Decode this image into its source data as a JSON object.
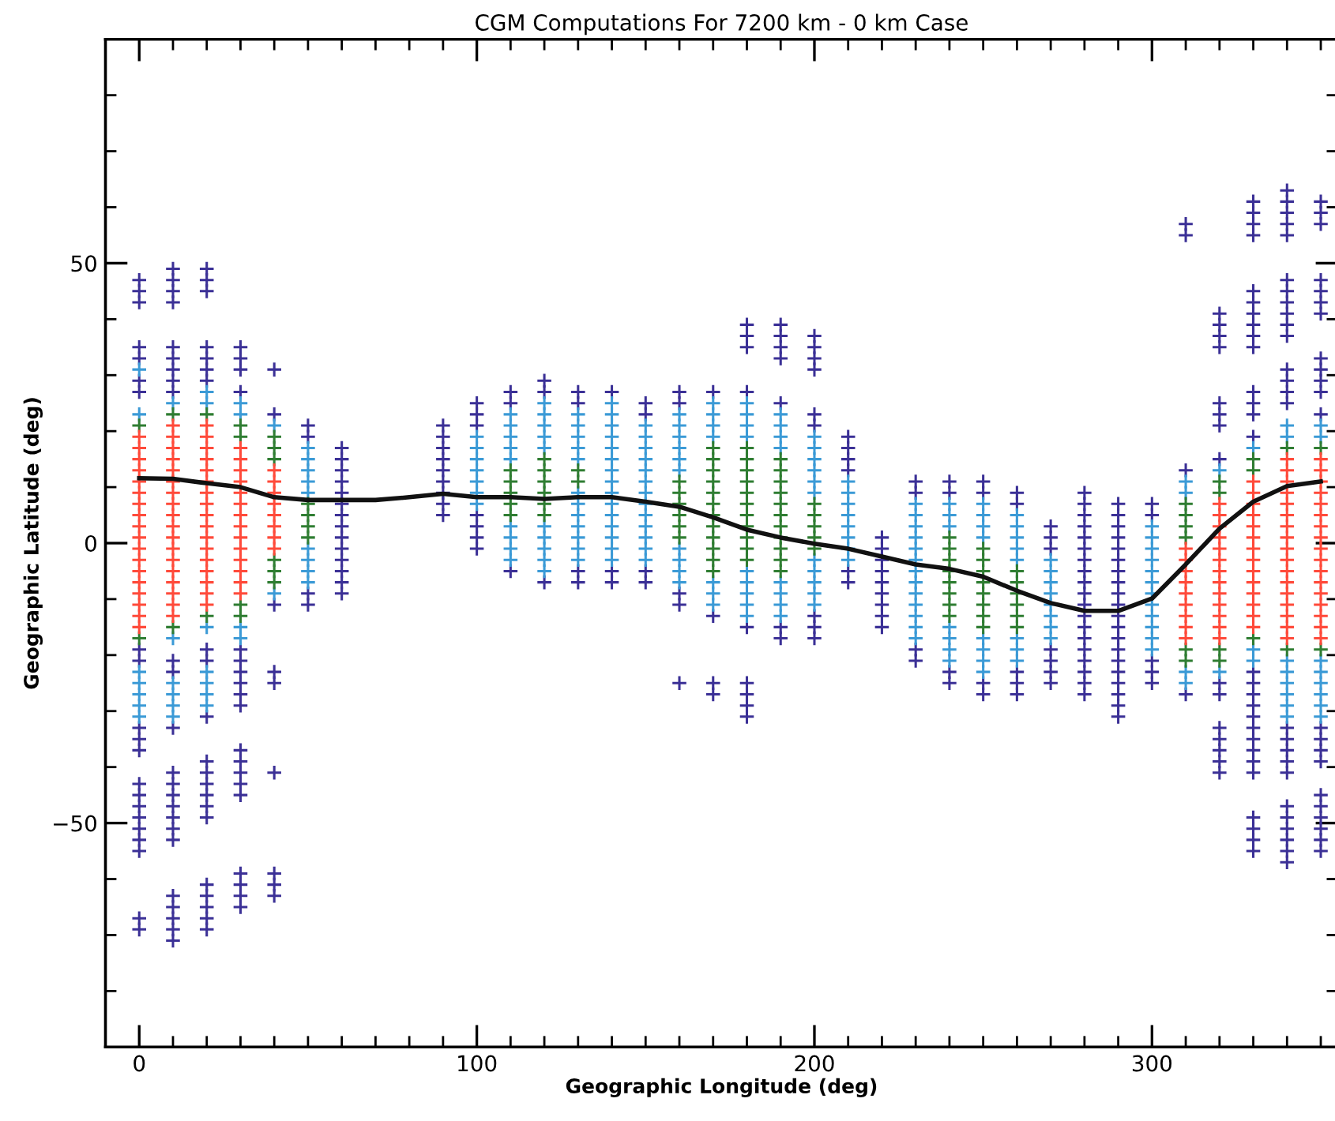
{
  "chart_data": {
    "type": "scatter",
    "title": "CGM Computations For 7200 km - 0 km Case",
    "xlabel": "Geographic Longitude (deg)",
    "ylabel": "Geographic Latitude (deg)",
    "xlim": [
      -10,
      355
    ],
    "ylim": [
      -90,
      90
    ],
    "xticks": [
      0,
      {
        "value": 10,
        "label": null
      },
      {
        "value": 20,
        "label": null
      },
      {
        "value": 30,
        "label": null
      },
      {
        "value": 40,
        "label": null
      },
      {
        "value": 50,
        "label": null
      },
      {
        "value": 60,
        "label": null
      },
      {
        "value": 70,
        "label": null
      },
      {
        "value": 80,
        "label": null
      },
      {
        "value": 90,
        "label": null
      },
      100,
      {
        "value": 110,
        "label": null
      },
      {
        "value": 120,
        "label": null
      },
      {
        "value": 130,
        "label": null
      },
      {
        "value": 140,
        "label": null
      },
      {
        "value": 150,
        "label": null
      },
      {
        "value": 160,
        "label": null
      },
      {
        "value": 170,
        "label": null
      },
      {
        "value": 180,
        "label": null
      },
      {
        "value": 190,
        "label": null
      },
      200,
      {
        "value": 210,
        "label": null
      },
      {
        "value": 220,
        "label": null
      },
      {
        "value": 230,
        "label": null
      },
      {
        "value": 240,
        "label": null
      },
      {
        "value": 250,
        "label": null
      },
      {
        "value": 260,
        "label": null
      },
      {
        "value": 270,
        "label": null
      },
      {
        "value": 280,
        "label": null
      },
      {
        "value": 290,
        "label": null
      },
      300,
      {
        "value": 310,
        "label": null
      },
      {
        "value": 320,
        "label": null
      },
      {
        "value": 330,
        "label": null
      },
      {
        "value": 340,
        "label": null
      },
      {
        "value": 350,
        "label": null
      }
    ],
    "yticks": [
      {
        "value": -80,
        "label": null
      },
      {
        "value": -70,
        "label": null
      },
      {
        "value": -60,
        "label": null
      },
      {
        "value": -50,
        "label": "−50"
      },
      {
        "value": -40,
        "label": null
      },
      {
        "value": -30,
        "label": null
      },
      {
        "value": -20,
        "label": null
      },
      {
        "value": -10,
        "label": null
      },
      0,
      {
        "value": 10,
        "label": null
      },
      {
        "value": 20,
        "label": null
      },
      {
        "value": 30,
        "label": null
      },
      {
        "value": 40,
        "label": null
      },
      50,
      {
        "value": 60,
        "label": null
      },
      {
        "value": 70,
        "label": null
      },
      {
        "value": 80,
        "label": null
      }
    ],
    "marker": "cross",
    "series": [
      {
        "color": "#3b3096",
        "x": [
          0,
          0,
          0,
          0,
          0,
          0,
          0,
          0,
          0,
          0,
          0,
          0,
          0,
          0,
          0,
          0,
          0,
          0,
          0,
          0,
          0,
          10,
          10,
          10,
          10,
          10,
          10,
          10,
          10,
          10,
          10,
          10,
          10,
          10,
          10,
          10,
          10,
          10,
          10,
          10,
          10,
          10,
          10,
          10,
          10,
          20,
          20,
          20,
          20,
          20,
          20,
          20,
          20,
          20,
          20,
          20,
          20,
          20,
          20,
          20,
          20,
          20,
          20,
          20,
          20,
          20,
          30,
          30,
          30,
          30,
          30,
          30,
          30,
          30,
          30,
          30,
          30,
          30,
          30,
          30,
          30,
          30,
          30,
          30,
          30,
          40,
          40,
          40,
          40,
          40,
          40,
          40,
          40,
          40,
          50,
          50,
          50,
          50,
          60,
          60,
          60,
          60,
          60,
          60,
          60,
          60,
          60,
          60,
          60,
          60,
          60,
          60,
          90,
          90,
          90,
          90,
          90,
          90,
          90,
          90,
          90,
          100,
          100,
          100,
          100,
          100,
          100,
          100,
          110,
          110,
          110,
          120,
          120,
          120,
          130,
          130,
          130,
          130,
          140,
          140,
          140,
          150,
          150,
          150,
          150,
          160,
          160,
          160,
          160,
          160,
          170,
          170,
          170,
          170,
          180,
          180,
          180,
          180,
          180,
          180,
          180,
          180,
          180,
          190,
          190,
          190,
          190,
          190,
          190,
          190,
          200,
          200,
          200,
          200,
          200,
          200,
          200,
          200,
          200,
          210,
          210,
          210,
          210,
          210,
          210,
          220,
          220,
          220,
          220,
          220,
          220,
          220,
          220,
          220,
          230,
          230,
          230,
          230,
          240,
          240,
          240,
          240,
          250,
          250,
          250,
          250,
          260,
          260,
          260,
          260,
          260,
          270,
          270,
          270,
          270,
          270,
          270,
          270,
          280,
          280,
          280,
          280,
          280,
          280,
          280,
          280,
          280,
          280,
          280,
          280,
          280,
          280,
          280,
          280,
          280,
          280,
          280,
          290,
          290,
          290,
          290,
          290,
          290,
          290,
          290,
          290,
          290,
          290,
          290,
          290,
          290,
          290,
          290,
          290,
          290,
          290,
          290,
          300,
          300,
          300,
          300,
          300,
          310,
          310,
          310,
          310,
          320,
          320,
          320,
          320,
          320,
          320,
          320,
          320,
          320,
          320,
          320,
          320,
          320,
          320,
          320,
          330,
          330,
          330,
          330,
          330,
          330,
          330,
          330,
          330,
          330,
          330,
          330,
          330,
          330,
          330,
          330,
          330,
          330,
          330,
          330,
          330,
          330,
          330,
          330,
          330,
          330,
          330,
          330,
          340,
          340,
          340,
          340,
          340,
          340,
          340,
          340,
          340,
          340,
          340,
          340,
          340,
          340,
          340,
          340,
          340,
          340,
          340,
          340,
          340,
          340,
          340,
          340,
          340,
          340,
          350,
          350,
          350,
          350,
          350,
          350,
          350,
          350,
          350,
          350,
          350,
          350,
          350,
          350,
          350,
          350,
          350,
          350,
          350,
          350,
          350,
          350
        ],
        "values": [
          47,
          45,
          43,
          35,
          33,
          29,
          27,
          -19,
          -21,
          -33,
          -35,
          -37,
          -43,
          -45,
          -47,
          -49,
          -51,
          -53,
          -55,
          -67,
          -69,
          49,
          47,
          45,
          43,
          35,
          33,
          31,
          29,
          27,
          -21,
          -23,
          -33,
          -41,
          -43,
          -45,
          -47,
          -49,
          -51,
          -53,
          -63,
          -65,
          -67,
          -69,
          -71,
          49,
          47,
          45,
          35,
          33,
          31,
          29,
          -19,
          -21,
          -31,
          -39,
          -41,
          -43,
          -45,
          -47,
          -49,
          -61,
          -63,
          -65,
          -67,
          -69,
          35,
          33,
          31,
          27,
          -19,
          -21,
          -23,
          -25,
          -27,
          -29,
          -37,
          -39,
          -41,
          -43,
          -45,
          -59,
          -61,
          -63,
          -65,
          31,
          23,
          -11,
          -23,
          -25,
          -41,
          -59,
          -61,
          -63,
          21,
          19,
          -9,
          -11,
          17,
          15,
          13,
          11,
          9,
          7,
          5,
          3,
          1,
          -1,
          -3,
          -5,
          -7,
          -9,
          21,
          19,
          17,
          15,
          13,
          11,
          9,
          7,
          5,
          25,
          23,
          21,
          5,
          3,
          1,
          -1,
          27,
          25,
          -5,
          29,
          27,
          -7,
          27,
          25,
          -5,
          -7,
          27,
          -5,
          -7,
          25,
          23,
          -5,
          -7,
          27,
          25,
          -9,
          -11,
          -25,
          27,
          -13,
          -25,
          -27,
          39,
          37,
          35,
          27,
          -15,
          -25,
          -27,
          -29,
          -31,
          39,
          37,
          35,
          33,
          25,
          -15,
          -17,
          37,
          35,
          33,
          31,
          23,
          21,
          -13,
          -15,
          -17,
          19,
          17,
          15,
          13,
          -5,
          -7,
          1,
          -1,
          -3,
          -5,
          -7,
          -9,
          -11,
          -13,
          -15,
          11,
          9,
          -19,
          -21,
          11,
          9,
          -23,
          -25,
          11,
          9,
          -25,
          -27,
          9,
          7,
          -23,
          -25,
          -27,
          3,
          1,
          -1,
          -19,
          -21,
          -23,
          -25,
          9,
          7,
          5,
          3,
          1,
          -1,
          -3,
          -5,
          -7,
          -9,
          -11,
          -13,
          -15,
          -17,
          -19,
          -21,
          -23,
          -25,
          -27,
          7,
          5,
          3,
          1,
          -1,
          -3,
          -5,
          -7,
          -9,
          -11,
          -13,
          -15,
          -17,
          -19,
          -21,
          -23,
          -25,
          -27,
          -29,
          -31,
          7,
          5,
          -21,
          -23,
          -25,
          57,
          55,
          13,
          -27,
          41,
          39,
          37,
          35,
          25,
          23,
          21,
          15,
          -25,
          -27,
          -33,
          -35,
          -37,
          -39,
          -41,
          61,
          59,
          57,
          55,
          45,
          43,
          41,
          39,
          37,
          35,
          27,
          25,
          23,
          19,
          -23,
          -25,
          -27,
          -29,
          -31,
          -33,
          -35,
          -37,
          -39,
          -41,
          -49,
          -51,
          -53,
          -55,
          63,
          61,
          59,
          57,
          55,
          47,
          45,
          43,
          41,
          39,
          37,
          31,
          29,
          27,
          25,
          -33,
          -35,
          -37,
          -39,
          -41,
          -47,
          -49,
          -51,
          -53,
          -55,
          -57,
          61,
          59,
          57,
          47,
          45,
          43,
          41,
          33,
          31,
          29,
          27,
          23,
          -33,
          -35,
          -37,
          -39,
          -45,
          -47,
          -49,
          -51,
          -53,
          -55
        ]
      },
      {
        "color": "#3b9ad6",
        "x": [
          0,
          0,
          0,
          0,
          0,
          0,
          0,
          10,
          10,
          10,
          10,
          10,
          10,
          20,
          20,
          20,
          20,
          20,
          20,
          20,
          30,
          30,
          30,
          30,
          40,
          40,
          50,
          50,
          50,
          50,
          50,
          50,
          50,
          50,
          50,
          100,
          100,
          100,
          100,
          100,
          100,
          100,
          110,
          110,
          110,
          110,
          110,
          110,
          110,
          110,
          110,
          120,
          120,
          120,
          120,
          120,
          120,
          120,
          120,
          120,
          120,
          130,
          130,
          130,
          130,
          130,
          130,
          130,
          130,
          130,
          130,
          130,
          130,
          140,
          140,
          140,
          140,
          140,
          140,
          140,
          140,
          140,
          140,
          140,
          140,
          140,
          140,
          140,
          150,
          150,
          150,
          150,
          150,
          150,
          150,
          150,
          150,
          150,
          150,
          150,
          150,
          160,
          160,
          160,
          160,
          160,
          160,
          160,
          160,
          160,
          160,
          170,
          170,
          170,
          170,
          170,
          170,
          170,
          180,
          180,
          180,
          180,
          180,
          180,
          180,
          180,
          180,
          190,
          190,
          190,
          190,
          190,
          190,
          190,
          190,
          200,
          200,
          200,
          200,
          200,
          200,
          200,
          200,
          200,
          200,
          200,
          210,
          210,
          210,
          210,
          210,
          210,
          210,
          210,
          230,
          230,
          230,
          230,
          230,
          230,
          230,
          230,
          230,
          230,
          230,
          230,
          230,
          240,
          240,
          240,
          240,
          240,
          240,
          240,
          250,
          250,
          250,
          250,
          250,
          250,
          250,
          250,
          260,
          260,
          260,
          260,
          260,
          260,
          260,
          260,
          270,
          270,
          270,
          270,
          270,
          270,
          270,
          270,
          300,
          300,
          300,
          300,
          300,
          300,
          300,
          300,
          300,
          300,
          300,
          300,
          310,
          310,
          310,
          310,
          320,
          320,
          330,
          330,
          330,
          340,
          340,
          340,
          340,
          340,
          340,
          340,
          340,
          350,
          350,
          350,
          350,
          350,
          350,
          350,
          350
        ],
        "values": [
          31,
          23,
          -23,
          -25,
          -27,
          -29,
          -31,
          25,
          -17,
          -25,
          -27,
          -29,
          -31,
          27,
          25,
          -15,
          -23,
          -25,
          -27,
          -29,
          25,
          23,
          -15,
          -17,
          21,
          -9,
          17,
          15,
          13,
          11,
          9,
          -1,
          -3,
          -5,
          -7,
          19,
          17,
          15,
          13,
          11,
          9,
          7,
          23,
          21,
          19,
          17,
          15,
          3,
          1,
          -1,
          -3,
          25,
          23,
          21,
          19,
          17,
          3,
          1,
          -1,
          -3,
          -5,
          23,
          21,
          19,
          17,
          15,
          9,
          7,
          5,
          3,
          1,
          -1,
          -3,
          25,
          23,
          21,
          19,
          17,
          15,
          13,
          11,
          9,
          7,
          5,
          3,
          1,
          -1,
          -3,
          21,
          19,
          17,
          15,
          13,
          11,
          9,
          7,
          5,
          3,
          1,
          -1,
          -3,
          23,
          21,
          19,
          17,
          15,
          13,
          -1,
          -3,
          -5,
          -7,
          25,
          23,
          21,
          19,
          -7,
          -9,
          -11,
          25,
          23,
          21,
          19,
          -5,
          -7,
          -9,
          -11,
          -13,
          23,
          21,
          19,
          17,
          -7,
          -9,
          -11,
          -13,
          19,
          17,
          15,
          13,
          11,
          9,
          -3,
          -5,
          -7,
          -9,
          -11,
          11,
          9,
          7,
          5,
          3,
          1,
          -1,
          -3,
          7,
          5,
          3,
          1,
          -1,
          -3,
          -5,
          -7,
          -9,
          -11,
          -13,
          -15,
          -17,
          7,
          5,
          3,
          -15,
          -17,
          -19,
          -21,
          7,
          5,
          3,
          1,
          -17,
          -19,
          -21,
          -23,
          5,
          3,
          1,
          -1,
          -3,
          -17,
          -19,
          -21,
          -3,
          -5,
          -7,
          -9,
          -11,
          -13,
          -15,
          -17,
          3,
          1,
          -1,
          -3,
          -5,
          -7,
          -9,
          -11,
          -13,
          -15,
          -17,
          -19,
          11,
          9,
          -23,
          -25,
          13,
          -23,
          17,
          -19,
          -21,
          21,
          19,
          -21,
          -23,
          -25,
          -27,
          -29,
          -31,
          21,
          19,
          -21,
          -23,
          -25,
          -27,
          -29,
          -31
        ]
      },
      {
        "color": "#2f7d32",
        "x": [
          0,
          0,
          10,
          10,
          20,
          20,
          30,
          30,
          30,
          30,
          40,
          40,
          40,
          40,
          40,
          40,
          50,
          50,
          50,
          50,
          110,
          110,
          110,
          110,
          110,
          120,
          120,
          120,
          120,
          120,
          120,
          130,
          130,
          160,
          160,
          160,
          160,
          160,
          160,
          170,
          170,
          170,
          170,
          170,
          170,
          170,
          170,
          170,
          170,
          170,
          170,
          180,
          180,
          180,
          180,
          180,
          180,
          180,
          180,
          180,
          180,
          180,
          190,
          190,
          190,
          190,
          190,
          190,
          190,
          190,
          190,
          190,
          190,
          200,
          200,
          200,
          200,
          200,
          240,
          240,
          240,
          240,
          240,
          240,
          240,
          240,
          250,
          250,
          250,
          250,
          250,
          250,
          250,
          250,
          260,
          260,
          260,
          260,
          260,
          260,
          310,
          310,
          310,
          310,
          310,
          310,
          320,
          320,
          320,
          320,
          330,
          330,
          330,
          340,
          340,
          350,
          350
        ],
        "values": [
          21,
          -17,
          23,
          -15,
          23,
          -13,
          21,
          19,
          -11,
          -13,
          19,
          17,
          15,
          -3,
          -5,
          -7,
          7,
          5,
          3,
          1,
          13,
          11,
          9,
          7,
          5,
          15,
          13,
          11,
          9,
          7,
          5,
          13,
          11,
          11,
          9,
          7,
          5,
          3,
          1,
          17,
          15,
          13,
          11,
          9,
          7,
          5,
          3,
          1,
          -1,
          -3,
          -5,
          17,
          15,
          13,
          11,
          9,
          7,
          5,
          3,
          1,
          -1,
          -3,
          15,
          13,
          11,
          9,
          7,
          5,
          3,
          1,
          -1,
          -3,
          -5,
          7,
          5,
          3,
          1,
          -1,
          1,
          -1,
          -3,
          -5,
          -7,
          -9,
          -11,
          -13,
          -1,
          -3,
          -5,
          -7,
          -9,
          -11,
          -13,
          -15,
          -5,
          -7,
          -9,
          -11,
          -13,
          -15,
          7,
          5,
          3,
          1,
          -19,
          -21,
          11,
          9,
          -19,
          -21,
          15,
          13,
          -17,
          17,
          -19,
          17,
          -19
        ]
      },
      {
        "color": "#ff4a3a",
        "x": [
          0,
          0,
          0,
          0,
          0,
          0,
          0,
          0,
          0,
          0,
          0,
          0,
          0,
          0,
          0,
          0,
          0,
          0,
          10,
          10,
          10,
          10,
          10,
          10,
          10,
          10,
          10,
          10,
          10,
          10,
          10,
          10,
          10,
          10,
          10,
          10,
          20,
          20,
          20,
          20,
          20,
          20,
          20,
          20,
          20,
          20,
          20,
          20,
          20,
          20,
          20,
          20,
          20,
          30,
          30,
          30,
          30,
          30,
          30,
          30,
          30,
          30,
          30,
          30,
          30,
          30,
          30,
          40,
          40,
          40,
          40,
          40,
          40,
          40,
          40,
          310,
          310,
          310,
          310,
          310,
          310,
          310,
          310,
          310,
          320,
          320,
          320,
          320,
          320,
          320,
          320,
          320,
          320,
          320,
          320,
          320,
          320,
          330,
          330,
          330,
          330,
          330,
          330,
          330,
          330,
          330,
          330,
          330,
          330,
          330,
          330,
          340,
          340,
          340,
          340,
          340,
          340,
          340,
          340,
          340,
          340,
          340,
          340,
          340,
          340,
          340,
          340,
          340,
          350,
          350,
          350,
          350,
          350,
          350,
          350,
          350,
          350,
          350,
          350,
          350,
          350,
          350,
          350,
          350,
          350
        ],
        "values": [
          19,
          17,
          15,
          13,
          11,
          9,
          7,
          5,
          3,
          1,
          -1,
          -3,
          -5,
          -7,
          -9,
          -11,
          -13,
          -15,
          21,
          19,
          17,
          15,
          13,
          11,
          9,
          7,
          5,
          3,
          1,
          -1,
          -3,
          -5,
          -7,
          -9,
          -11,
          -13,
          21,
          19,
          17,
          15,
          13,
          11,
          9,
          7,
          5,
          3,
          1,
          -1,
          -3,
          -5,
          -7,
          -9,
          -11,
          17,
          15,
          13,
          11,
          9,
          7,
          5,
          3,
          1,
          -1,
          -3,
          -5,
          -7,
          -9,
          13,
          11,
          9,
          7,
          5,
          3,
          1,
          -1,
          -1,
          -3,
          -5,
          -7,
          -9,
          -11,
          -13,
          -15,
          -17,
          7,
          5,
          3,
          1,
          -1,
          -3,
          -5,
          -7,
          -9,
          -11,
          -13,
          -15,
          -17,
          11,
          9,
          7,
          5,
          3,
          1,
          -1,
          -3,
          -5,
          -7,
          -9,
          -11,
          -13,
          -15,
          15,
          13,
          11,
          9,
          7,
          5,
          3,
          1,
          -1,
          -3,
          -5,
          -7,
          -9,
          -11,
          -13,
          -15,
          -17,
          15,
          13,
          11,
          9,
          7,
          5,
          3,
          1,
          -1,
          -3,
          -5,
          -7,
          -9,
          -11,
          -13,
          -15,
          -17
        ]
      },
      {
        "type": "line",
        "color": "#111111",
        "marker": "none",
        "x": [
          0,
          10,
          20,
          30,
          40,
          50,
          60,
          70,
          80,
          90,
          100,
          110,
          120,
          130,
          140,
          150,
          160,
          170,
          180,
          190,
          200,
          210,
          220,
          230,
          240,
          250,
          260,
          270,
          280,
          290,
          300,
          310,
          320,
          330,
          340,
          350
        ],
        "values": [
          11.6,
          11.5,
          10.7,
          10,
          8.2,
          7.7,
          7.7,
          7.7,
          8.2,
          8.8,
          8.2,
          8.2,
          7.9,
          8.2,
          8.2,
          7.4,
          6.5,
          4.6,
          2.4,
          1,
          -0.1,
          -1,
          -2.4,
          -3.8,
          -4.6,
          -6,
          -8.5,
          -10.7,
          -12.1,
          -12.1,
          -9.9,
          -3.8,
          2.6,
          7.4,
          10.2,
          11
        ]
      }
    ]
  }
}
